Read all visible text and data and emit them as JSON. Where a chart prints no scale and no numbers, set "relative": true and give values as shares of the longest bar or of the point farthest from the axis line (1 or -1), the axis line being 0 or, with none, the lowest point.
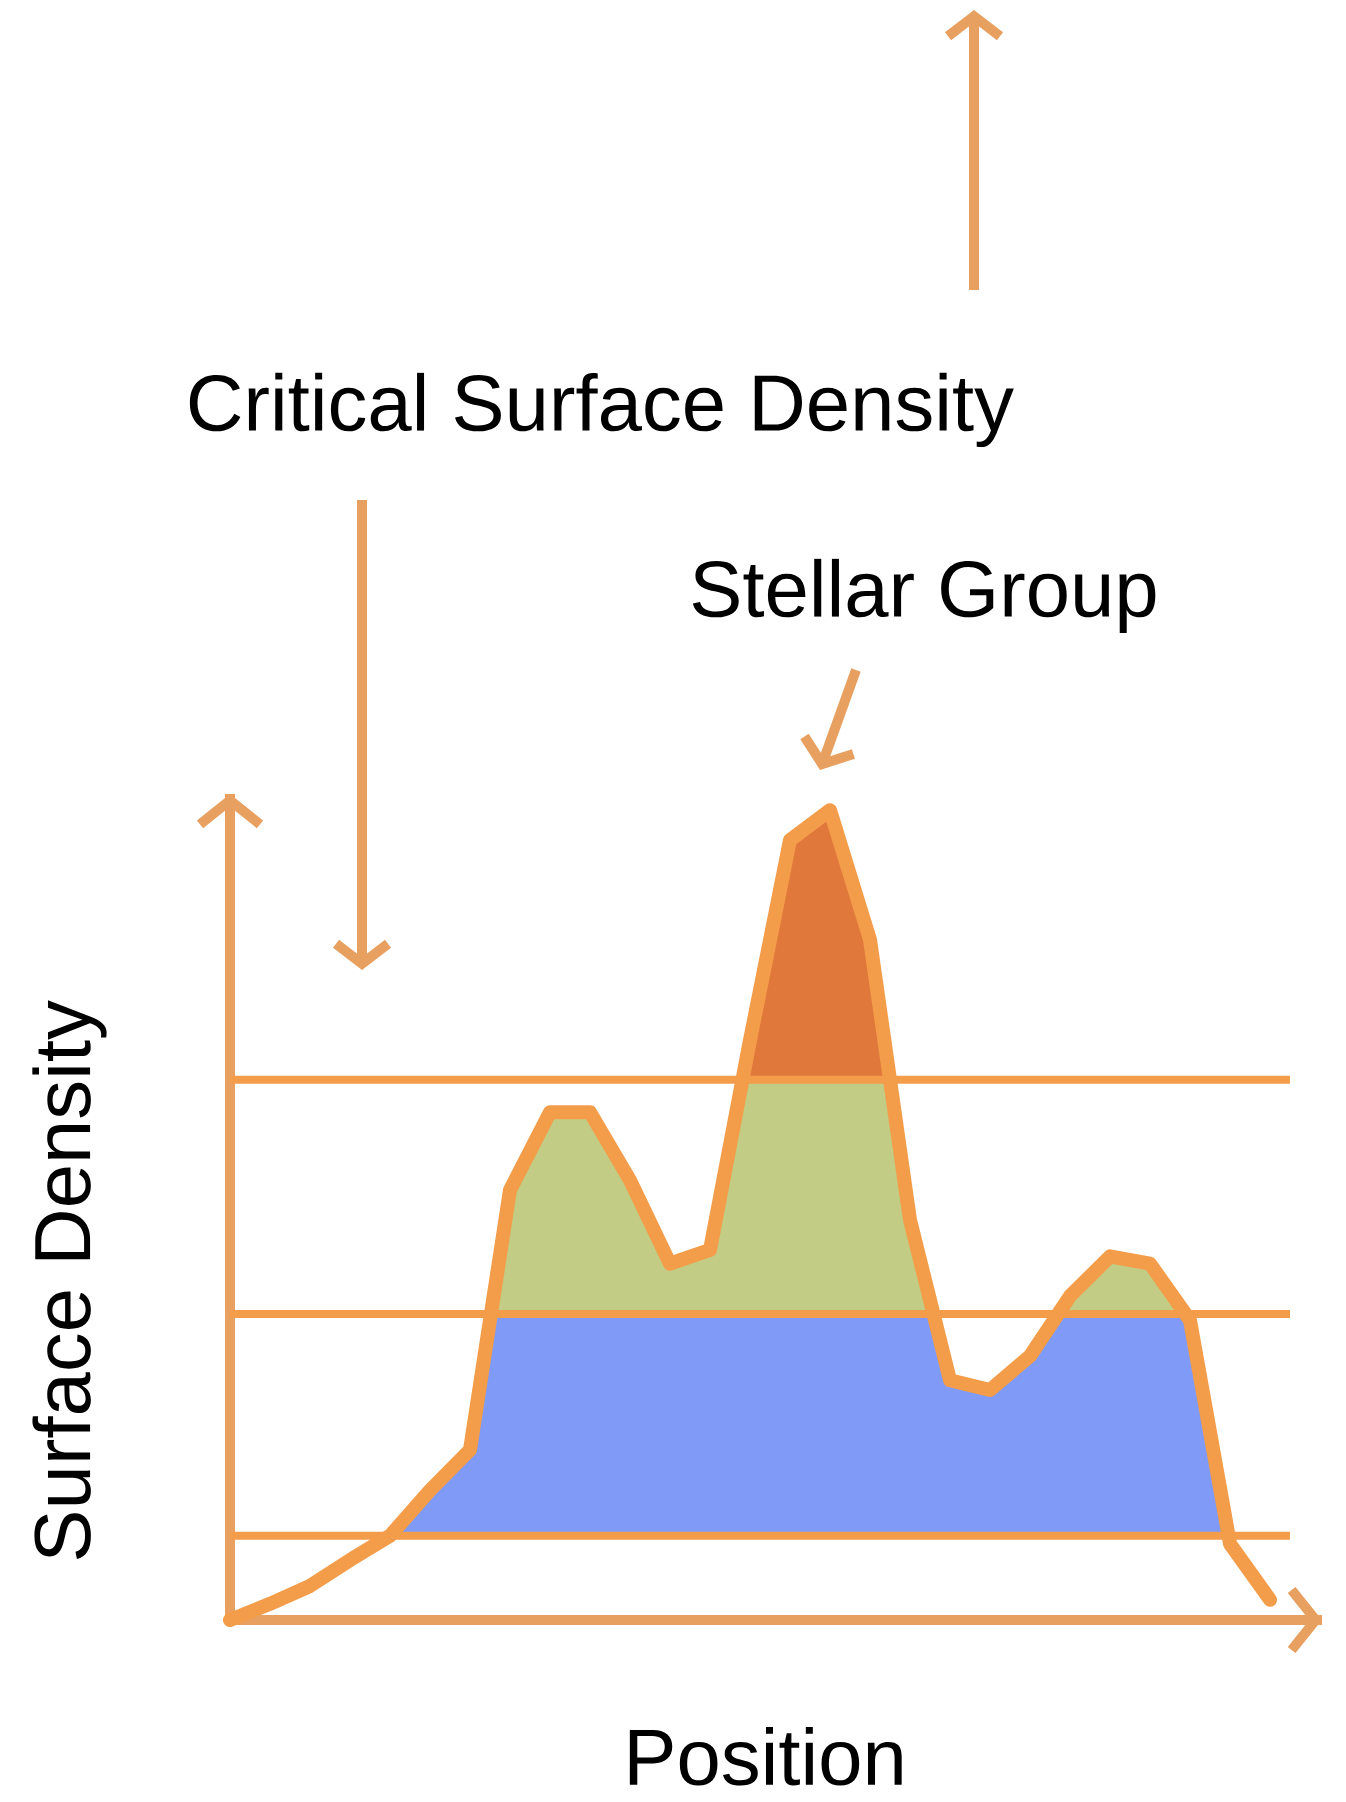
{
  "chart_data": {
    "type": "line",
    "relative": true,
    "xlabel": "Position",
    "ylabel": "Surface Density",
    "categories": [
      null,
      null,
      null,
      null,
      null,
      null,
      null,
      null,
      null,
      null,
      null,
      null,
      null,
      null,
      null,
      null,
      null,
      null,
      null,
      null,
      null,
      null,
      null,
      null,
      null,
      null,
      null
    ],
    "values": [
      0,
      0.02,
      0.042,
      0.074,
      0.104,
      0.16,
      0.21,
      0.531,
      0.627,
      0.627,
      0.543,
      0.44,
      0.457,
      0.716,
      0.963,
      1,
      0.84,
      0.494,
      0.296,
      0.284,
      0.326,
      0.4,
      0.449,
      0.44,
      0.37,
      0.094,
      0.025
    ],
    "color": "#f39c49",
    "line_style": "solid",
    "marker": "none",
    "ref_lines": [
      {
        "axis": "y",
        "value": 0.104,
        "color": "#f39c49"
      },
      {
        "axis": "y",
        "value": 0.378,
        "color": "#f39c49"
      },
      {
        "axis": "y",
        "value": 0.667,
        "color": "#f39c49"
      }
    ],
    "annotations": [
      "Critical Surface Density",
      "Stellar Group"
    ]
  }
}
